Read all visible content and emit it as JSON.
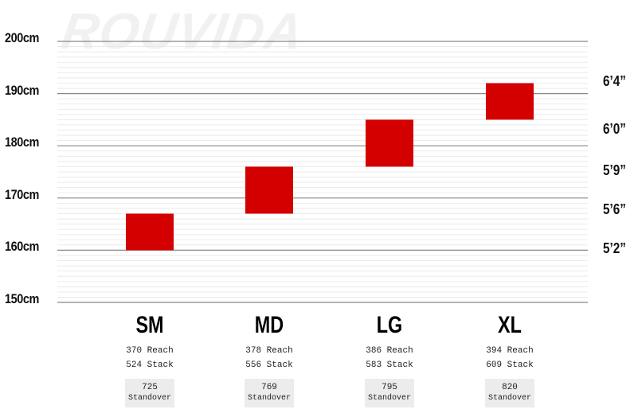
{
  "watermark": "ROUVIDA",
  "colors": {
    "bar": "#d40000",
    "major_grid": "#888888",
    "minor_grid": "#e6e6e6"
  },
  "chart_data": {
    "type": "bar",
    "title": "",
    "ylabel": "",
    "ylim": [
      150,
      200
    ],
    "y_ticks": [
      "150cm",
      "160cm",
      "170cm",
      "180cm",
      "190cm",
      "200cm"
    ],
    "y_tick_values": [
      150,
      160,
      170,
      180,
      190,
      200
    ],
    "secondary_axis": {
      "labels": [
        "5’2”",
        "5’6”",
        "5’9”",
        "6’0”",
        "6’4”"
      ],
      "values_cm": [
        160,
        167.5,
        175,
        183,
        192
      ]
    },
    "categories": [
      "SM",
      "MD",
      "LG",
      "XL"
    ],
    "ranges": [
      [
        160,
        167
      ],
      [
        167,
        176
      ],
      [
        176,
        185
      ],
      [
        185,
        192
      ]
    ],
    "specs": [
      {
        "reach": "370 Reach",
        "stack": "524 Stack",
        "standover_value": "725",
        "standover_label": "Standover"
      },
      {
        "reach": "378 Reach",
        "stack": "556 Stack",
        "standover_value": "769",
        "standover_label": "Standover"
      },
      {
        "reach": "386 Reach",
        "stack": "583 Stack",
        "standover_value": "795",
        "standover_label": "Standover"
      },
      {
        "reach": "394 Reach",
        "stack": "609 Stack",
        "standover_value": "820",
        "standover_label": "Standover"
      }
    ]
  }
}
